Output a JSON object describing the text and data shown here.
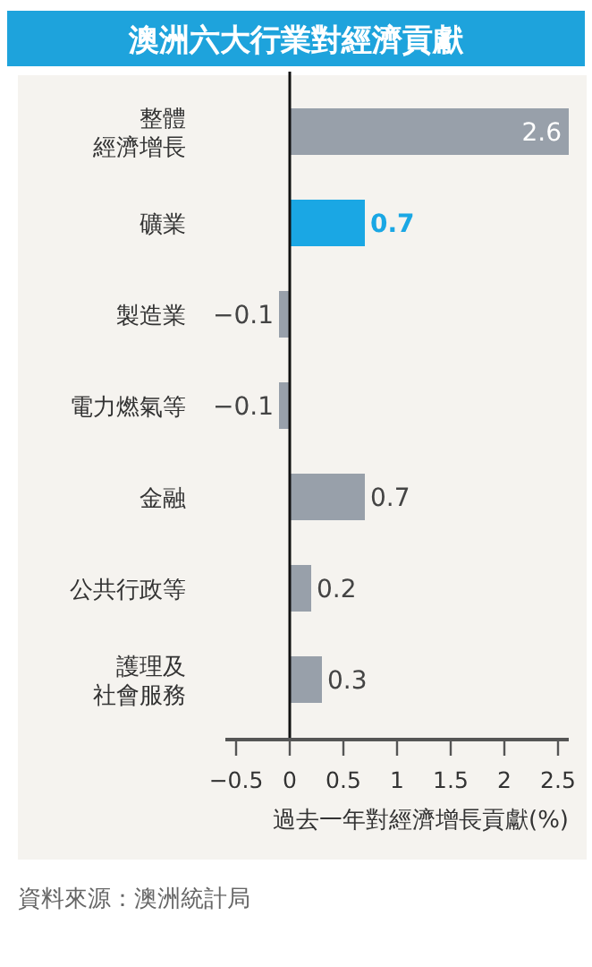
{
  "chart_data": {
    "type": "bar",
    "orientation": "horizontal",
    "title": "澳洲六大行業對經濟貢獻",
    "categories": [
      "整體經濟增長",
      "礦業",
      "製造業",
      "電力燃氣等",
      "金融",
      "公共行政等",
      "護理及社會服務"
    ],
    "values": [
      2.6,
      0.7,
      -0.1,
      -0.1,
      0.7,
      0.2,
      0.3
    ],
    "value_labels": [
      "2.6",
      "0.7",
      "−0.1",
      "−0.1",
      "0.7",
      "0.2",
      "0.3"
    ],
    "colors": [
      "#98a0aa",
      "#1aa7e4",
      "#98a0aa",
      "#98a0aa",
      "#98a0aa",
      "#98a0aa",
      "#98a0aa"
    ],
    "xlim": [
      -0.6,
      2.6
    ],
    "xticks": [
      {
        "value": -0.5,
        "label": "−0.5"
      },
      0,
      0.5,
      1,
      1.5,
      2,
      2.5
    ],
    "xlabel": "過去一年對經濟增長貢獻(%)",
    "annotations": [
      "資料來源：澳洲統計局"
    ],
    "ref_lines": [
      {
        "axis": "x",
        "value": 0,
        "color": "#111111"
      }
    ]
  }
}
